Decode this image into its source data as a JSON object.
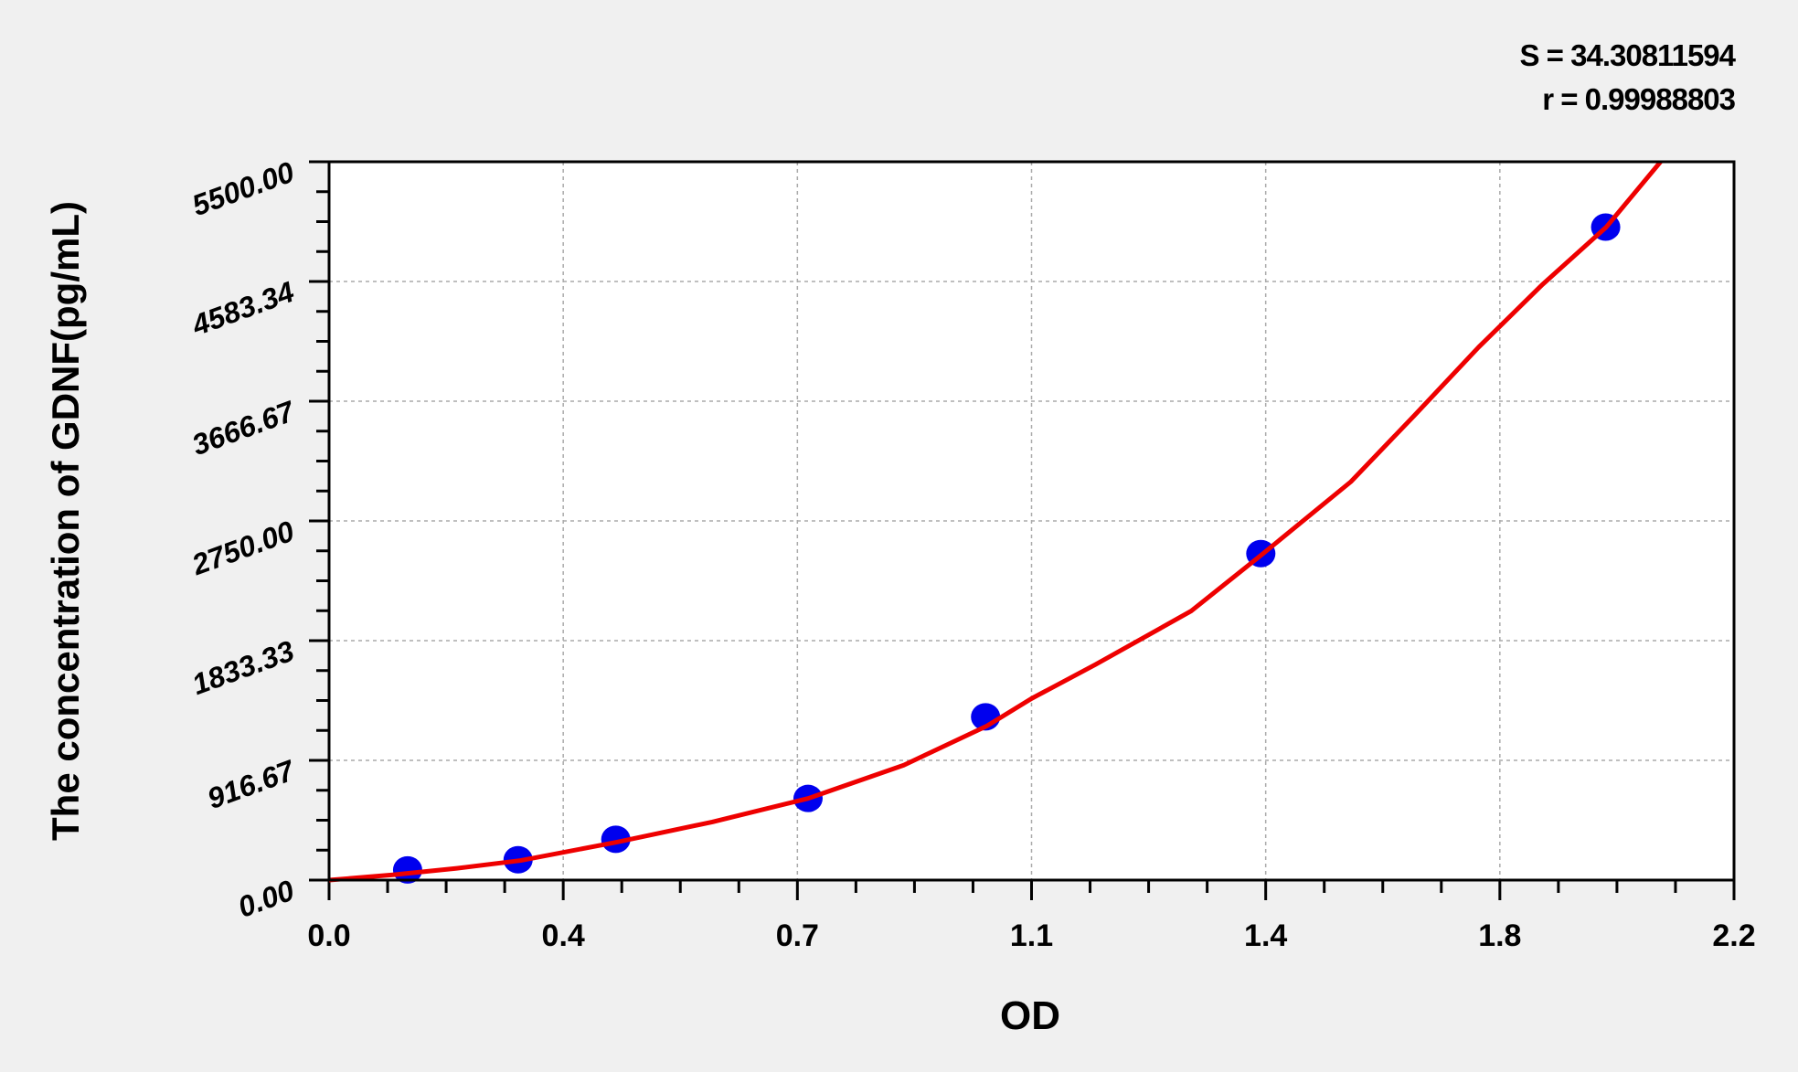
{
  "stats": {
    "s_label": "S = 34.30811594",
    "r_label": "r = 0.99988803"
  },
  "chart_data": {
    "type": "scatter",
    "title": "",
    "xlabel": "OD",
    "ylabel": "The concentration of GDNF(pg/mL)",
    "xlim": [
      0,
      2.2
    ],
    "ylim": [
      0,
      5500
    ],
    "x_tick_labels": [
      "0.0",
      "0.4",
      "0.7",
      "1.1",
      "1.4",
      "1.8",
      "2.2"
    ],
    "y_tick_labels": [
      "0.00",
      "916.67",
      "1833.33",
      "2750.00",
      "3666.67",
      "4583.34",
      "5500.00"
    ],
    "grid": true,
    "points": {
      "x": [
        0.123,
        0.296,
        0.449,
        0.75,
        1.028,
        1.459,
        1.999
      ],
      "y": [
        78,
        156,
        312,
        625,
        1250,
        2500,
        5000
      ]
    },
    "fit_curve": {
      "x": [
        0,
        0.1,
        0.2,
        0.3,
        0.45,
        0.6,
        0.75,
        0.9,
        1.03,
        1.1,
        1.2,
        1.35,
        1.46,
        1.6,
        1.7,
        1.8,
        1.9,
        2.0,
        2.085
      ],
      "y": [
        0,
        40,
        90,
        150,
        290,
        445,
        625,
        880,
        1180,
        1390,
        1650,
        2060,
        2490,
        3050,
        3560,
        4080,
        4560,
        5000,
        5500
      ]
    },
    "colors": {
      "points": "#0000ee",
      "curve": "#ee0000",
      "grid": "#aaaaaa",
      "axis": "#000000"
    }
  }
}
